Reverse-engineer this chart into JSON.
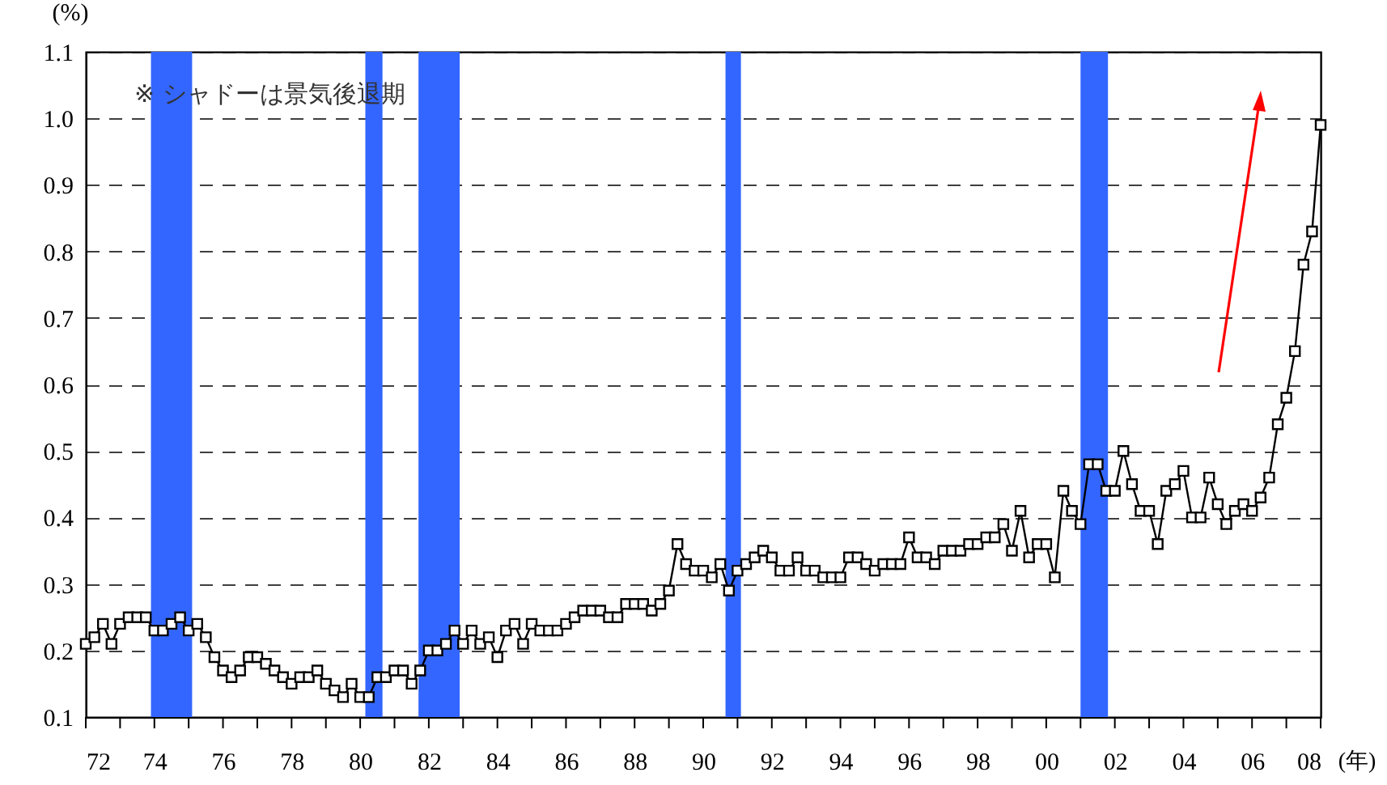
{
  "chart_data": {
    "type": "line",
    "ylabel": "(%)",
    "xlabel": "(年)",
    "annotations": [
      "※ シャドーは景気後退期"
    ],
    "x": [
      1972,
      1972.25,
      1972.5,
      1972.75,
      1973,
      1973.25,
      1973.5,
      1973.75,
      1974,
      1974.25,
      1974.5,
      1974.75,
      1975,
      1975.25,
      1975.5,
      1975.75,
      1976,
      1976.25,
      1976.5,
      1976.75,
      1977,
      1977.25,
      1977.5,
      1977.75,
      1978,
      1978.25,
      1978.5,
      1978.75,
      1979,
      1979.25,
      1979.5,
      1979.75,
      1980,
      1980.25,
      1980.5,
      1980.75,
      1981,
      1981.25,
      1981.5,
      1981.75,
      1982,
      1982.25,
      1982.5,
      1982.75,
      1983,
      1983.25,
      1983.5,
      1983.75,
      1984,
      1984.25,
      1984.5,
      1984.75,
      1985,
      1985.25,
      1985.5,
      1985.75,
      1986,
      1986.25,
      1986.5,
      1986.75,
      1987,
      1987.25,
      1987.5,
      1987.75,
      1988,
      1988.25,
      1988.5,
      1988.75,
      1989,
      1989.25,
      1989.5,
      1989.75,
      1990,
      1990.25,
      1990.5,
      1990.75,
      1991,
      1991.25,
      1991.5,
      1991.75,
      1992,
      1992.25,
      1992.5,
      1992.75,
      1993,
      1993.25,
      1993.5,
      1993.75,
      1994,
      1994.25,
      1994.5,
      1994.75,
      1995,
      1995.25,
      1995.5,
      1995.75,
      1996,
      1996.25,
      1996.5,
      1996.75,
      1997,
      1997.25,
      1997.5,
      1997.75,
      1998,
      1998.25,
      1998.5,
      1998.75,
      1999,
      1999.25,
      1999.5,
      1999.75,
      2000,
      2000.25,
      2000.5,
      2000.75,
      2001,
      2001.25,
      2001.5,
      2001.75,
      2002,
      2002.25,
      2002.5,
      2002.75,
      2003,
      2003.25,
      2003.5,
      2003.75,
      2004,
      2004.25,
      2004.5,
      2004.75,
      2005,
      2005.25,
      2005.5,
      2005.75,
      2006,
      2006.25,
      2006.5,
      2006.75,
      2007,
      2007.25,
      2007.5,
      2007.75,
      2008
    ],
    "series": [
      {
        "color": "#000000",
        "values": [
          0.21,
          0.22,
          0.24,
          0.21,
          0.24,
          0.25,
          0.25,
          0.25,
          0.23,
          0.23,
          0.24,
          0.25,
          0.23,
          0.24,
          0.22,
          0.19,
          0.17,
          0.16,
          0.17,
          0.19,
          0.19,
          0.18,
          0.17,
          0.16,
          0.15,
          0.16,
          0.16,
          0.17,
          0.15,
          0.14,
          0.13,
          0.15,
          0.13,
          0.13,
          0.16,
          0.16,
          0.17,
          0.17,
          0.15,
          0.17,
          0.2,
          0.2,
          0.21,
          0.23,
          0.21,
          0.23,
          0.21,
          0.22,
          0.19,
          0.23,
          0.24,
          0.21,
          0.24,
          0.23,
          0.23,
          0.23,
          0.24,
          0.25,
          0.26,
          0.26,
          0.26,
          0.25,
          0.25,
          0.27,
          0.27,
          0.27,
          0.26,
          0.27,
          0.29,
          0.36,
          0.33,
          0.32,
          0.32,
          0.31,
          0.33,
          0.29,
          0.32,
          0.33,
          0.34,
          0.35,
          0.34,
          0.32,
          0.32,
          0.34,
          0.32,
          0.32,
          0.31,
          0.31,
          0.31,
          0.34,
          0.34,
          0.33,
          0.32,
          0.33,
          0.33,
          0.33,
          0.37,
          0.34,
          0.34,
          0.33,
          0.35,
          0.35,
          0.35,
          0.36,
          0.36,
          0.37,
          0.37,
          0.39,
          0.35,
          0.41,
          0.34,
          0.36,
          0.36,
          0.31,
          0.44,
          0.41,
          0.39,
          0.48,
          0.48,
          0.44,
          0.44,
          0.5,
          0.45,
          0.41,
          0.41,
          0.36,
          0.44,
          0.45,
          0.47,
          0.4,
          0.4,
          0.46,
          0.42,
          0.39,
          0.41,
          0.42,
          0.41,
          0.43,
          0.46,
          0.54,
          0.58,
          0.65,
          0.78,
          0.83,
          0.99
        ]
      }
    ],
    "xlim": [
      1972,
      2008
    ],
    "xticks": [
      {
        "value": 1972,
        "label": "72"
      },
      {
        "value": 1973,
        "label": null
      },
      {
        "value": 1974,
        "label": "74"
      },
      {
        "value": 1975,
        "label": null
      },
      {
        "value": 1976,
        "label": "76"
      },
      {
        "value": 1977,
        "label": null
      },
      {
        "value": 1978,
        "label": "78"
      },
      {
        "value": 1979,
        "label": null
      },
      {
        "value": 1980,
        "label": "80"
      },
      {
        "value": 1981,
        "label": null
      },
      {
        "value": 1982,
        "label": "82"
      },
      {
        "value": 1983,
        "label": null
      },
      {
        "value": 1984,
        "label": "84"
      },
      {
        "value": 1985,
        "label": null
      },
      {
        "value": 1986,
        "label": "86"
      },
      {
        "value": 1987,
        "label": null
      },
      {
        "value": 1988,
        "label": "88"
      },
      {
        "value": 1989,
        "label": null
      },
      {
        "value": 1990,
        "label": "90"
      },
      {
        "value": 1991,
        "label": null
      },
      {
        "value": 1992,
        "label": "92"
      },
      {
        "value": 1993,
        "label": null
      },
      {
        "value": 1994,
        "label": "94"
      },
      {
        "value": 1995,
        "label": null
      },
      {
        "value": 1996,
        "label": "96"
      },
      {
        "value": 1997,
        "label": null
      },
      {
        "value": 1998,
        "label": "98"
      },
      {
        "value": 1999,
        "label": null
      },
      {
        "value": 2000,
        "label": "00"
      },
      {
        "value": 2001,
        "label": null
      },
      {
        "value": 2002,
        "label": "02"
      },
      {
        "value": 2003,
        "label": null
      },
      {
        "value": 2004,
        "label": "04"
      },
      {
        "value": 2005,
        "label": null
      },
      {
        "value": 2006,
        "label": "06"
      },
      {
        "value": 2007,
        "label": null
      },
      {
        "value": 2008,
        "label": "08"
      }
    ],
    "ylim": [
      0.1,
      1.1
    ],
    "yticks": [
      0.1,
      0.2,
      0.3,
      0.4,
      0.5,
      0.6,
      0.7,
      0.8,
      0.9,
      {
        "value": 1,
        "label": "1.0"
      },
      1.1
    ],
    "bands": [
      {
        "axis": "x",
        "from": 1973.9,
        "to": 1975.1,
        "color": "#3366ff"
      },
      {
        "axis": "x",
        "from": 1980.15,
        "to": 1980.65,
        "color": "#3366ff"
      },
      {
        "axis": "x",
        "from": 1981.7,
        "to": 1982.9,
        "color": "#3366ff"
      },
      {
        "axis": "x",
        "from": 1990.65,
        "to": 1991.1,
        "color": "#3366ff"
      },
      {
        "axis": "x",
        "from": 2001.0,
        "to": 2001.8,
        "color": "#3366ff"
      }
    ],
    "grid": "y",
    "marker": "square",
    "line_style": "solid"
  }
}
